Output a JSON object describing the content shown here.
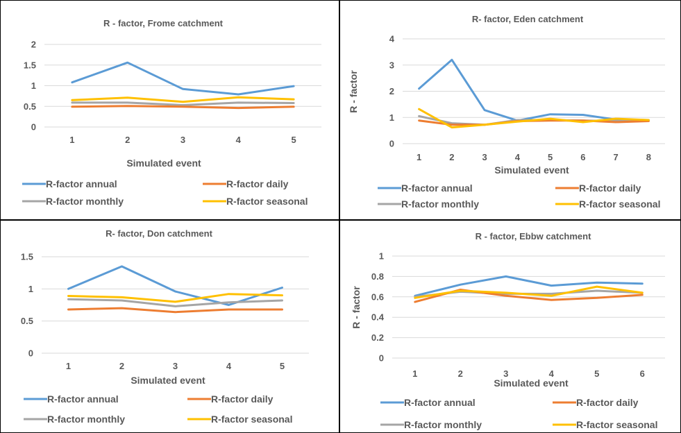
{
  "colors": {
    "R-factor annual": "#5b9bd5",
    "R-factor daily": "#ed7d31",
    "R-factor monthly": "#a5a5a5",
    "R-factor seasonal": "#ffc000",
    "grid": "#d9d9d9",
    "border": "#000000"
  },
  "chart_data": [
    {
      "type": "line",
      "title": "R - factor, Frome catchment",
      "xlabel": "Simulated event",
      "ylabel": "",
      "x": [
        1,
        2,
        3,
        4,
        5
      ],
      "ylim": [
        0,
        2
      ],
      "yticks": [
        "0",
        "0.5",
        "1",
        "1.5",
        "2"
      ],
      "grid": true,
      "legend": "bottom",
      "series": [
        {
          "name": "R-factor annual",
          "values": [
            1.08,
            1.56,
            0.92,
            0.79,
            0.99
          ]
        },
        {
          "name": "R-factor daily",
          "values": [
            0.49,
            0.51,
            0.49,
            0.46,
            0.49
          ]
        },
        {
          "name": "R-factor monthly",
          "values": [
            0.59,
            0.59,
            0.53,
            0.59,
            0.58
          ]
        },
        {
          "name": "R-factor seasonal",
          "values": [
            0.65,
            0.71,
            0.61,
            0.72,
            0.67
          ]
        }
      ]
    },
    {
      "type": "line",
      "title": "R- factor, Eden catchment",
      "xlabel": "Simulated event",
      "ylabel": "R - factor",
      "x": [
        1,
        2,
        3,
        4,
        5,
        6,
        7,
        8
      ],
      "ylim": [
        0,
        4
      ],
      "yticks": [
        "0",
        "1",
        "2",
        "3",
        "4"
      ],
      "grid": true,
      "legend": "bottom",
      "series": [
        {
          "name": "R-factor annual",
          "values": [
            2.1,
            3.2,
            1.28,
            0.88,
            1.12,
            1.1,
            0.92,
            0.9
          ]
        },
        {
          "name": "R-factor daily",
          "values": [
            0.88,
            0.72,
            0.72,
            0.86,
            0.88,
            0.88,
            0.82,
            0.86
          ]
        },
        {
          "name": "R-factor monthly",
          "values": [
            1.05,
            0.78,
            0.72,
            0.9,
            0.9,
            0.88,
            0.86,
            0.88
          ]
        },
        {
          "name": "R-factor seasonal",
          "values": [
            1.32,
            0.62,
            0.72,
            0.84,
            0.95,
            0.82,
            0.95,
            0.9
          ]
        }
      ]
    },
    {
      "type": "line",
      "title": "R- factor, Don catchment",
      "xlabel": "Simulated event",
      "ylabel": "",
      "x": [
        1,
        2,
        3,
        4,
        5
      ],
      "ylim": [
        0,
        1.5
      ],
      "yticks": [
        "0",
        "0.5",
        "1",
        "1.5"
      ],
      "grid": true,
      "legend": "bottom",
      "series": [
        {
          "name": "R-factor annual",
          "values": [
            1.0,
            1.35,
            0.96,
            0.75,
            1.02
          ]
        },
        {
          "name": "R-factor daily",
          "values": [
            0.68,
            0.7,
            0.64,
            0.68,
            0.68
          ]
        },
        {
          "name": "R-factor monthly",
          "values": [
            0.84,
            0.82,
            0.73,
            0.79,
            0.82
          ]
        },
        {
          "name": "R-factor seasonal",
          "values": [
            0.89,
            0.87,
            0.8,
            0.92,
            0.9
          ]
        }
      ]
    },
    {
      "type": "line",
      "title": "R - factor, Ebbw catchment",
      "xlabel": "Simulated event",
      "ylabel": "R - factor",
      "x": [
        1,
        2,
        3,
        4,
        5,
        6
      ],
      "ylim": [
        0,
        1
      ],
      "yticks": [
        "0",
        "0.2",
        "0.4",
        "0.6",
        "0.8",
        "1"
      ],
      "grid": true,
      "legend": "bottom",
      "series": [
        {
          "name": "R-factor annual",
          "values": [
            0.61,
            0.72,
            0.8,
            0.71,
            0.74,
            0.73
          ]
        },
        {
          "name": "R-factor daily",
          "values": [
            0.55,
            0.67,
            0.61,
            0.57,
            0.59,
            0.62
          ]
        },
        {
          "name": "R-factor monthly",
          "values": [
            0.6,
            0.65,
            0.63,
            0.63,
            0.66,
            0.64
          ]
        },
        {
          "name": "R-factor seasonal",
          "values": [
            0.59,
            0.66,
            0.64,
            0.61,
            0.7,
            0.64
          ]
        }
      ]
    }
  ]
}
